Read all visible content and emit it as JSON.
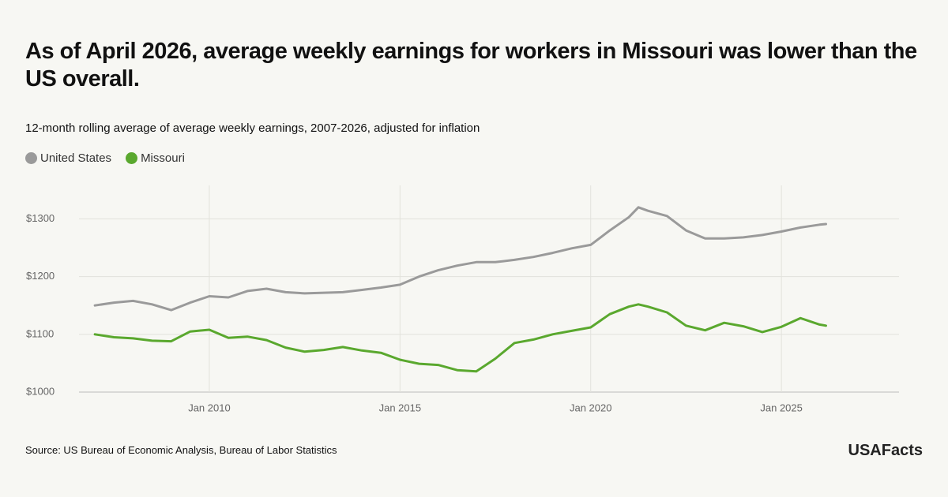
{
  "chart_data": {
    "type": "line",
    "title": "As of April 2026, average weekly earnings for workers in Missouri was lower than the US overall.",
    "subtitle": "12-month rolling average of average weekly earnings, 2007-2026, adjusted for inflation",
    "source": "Source: US Bureau of Economic Analysis, Bureau of Labor Statistics",
    "brand": "USAFacts",
    "x": [
      "2007-01",
      "2007-07",
      "2008-01",
      "2008-07",
      "2009-01",
      "2009-07",
      "2010-01",
      "2010-07",
      "2011-01",
      "2011-07",
      "2012-01",
      "2012-07",
      "2013-01",
      "2013-07",
      "2014-01",
      "2014-07",
      "2015-01",
      "2015-07",
      "2016-01",
      "2016-07",
      "2017-01",
      "2017-07",
      "2018-01",
      "2018-07",
      "2019-01",
      "2019-07",
      "2020-01",
      "2020-07",
      "2021-01",
      "2021-04",
      "2021-07",
      "2022-01",
      "2022-07",
      "2023-01",
      "2023-07",
      "2024-01",
      "2024-07",
      "2025-01",
      "2025-07",
      "2026-01",
      "2026-03"
    ],
    "series": [
      {
        "name": "United States",
        "color": "#9a9a9a",
        "values": [
          1150,
          1155,
          1158,
          1152,
          1142,
          1155,
          1166,
          1164,
          1175,
          1179,
          1173,
          1171,
          1172,
          1173,
          1177,
          1181,
          1186,
          1200,
          1211,
          1219,
          1225,
          1225,
          1229,
          1234,
          1241,
          1249,
          1255,
          1280,
          1303,
          1320,
          1314,
          1305,
          1280,
          1266,
          1266,
          1268,
          1272,
          1278,
          1285,
          1290,
          1291
        ]
      },
      {
        "name": "Missouri",
        "color": "#5aa82e",
        "values": [
          1100,
          1095,
          1093,
          1089,
          1088,
          1105,
          1108,
          1094,
          1096,
          1090,
          1077,
          1070,
          1073,
          1078,
          1072,
          1068,
          1056,
          1049,
          1047,
          1038,
          1036,
          1058,
          1085,
          1091,
          1100,
          1106,
          1112,
          1135,
          1148,
          1152,
          1148,
          1138,
          1115,
          1107,
          1120,
          1114,
          1104,
          1113,
          1128,
          1117,
          1115
        ]
      }
    ],
    "xlim": [
      "2006-08",
      "2028-02"
    ],
    "xticks": [
      {
        "value": "2010-01",
        "label": "Jan 2010"
      },
      {
        "value": "2015-01",
        "label": "Jan 2015"
      },
      {
        "value": "2020-01",
        "label": "Jan 2020"
      },
      {
        "value": "2025-01",
        "label": "Jan 2025"
      }
    ],
    "ylim": [
      1000,
      1358
    ],
    "yticks": [
      {
        "value": 1000,
        "label": "$1000"
      },
      {
        "value": 1100,
        "label": "$1100"
      },
      {
        "value": 1200,
        "label": "$1200"
      },
      {
        "value": 1300,
        "label": "$1300"
      }
    ],
    "grid": true
  }
}
